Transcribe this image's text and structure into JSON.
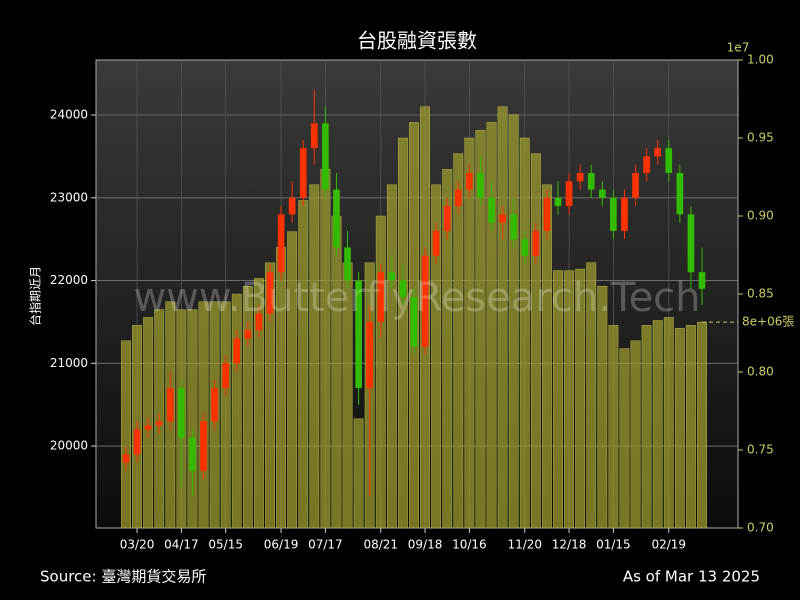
{
  "chart_data": {
    "type": "candlestick",
    "title": "台股融資張數",
    "ylabel": "台指期近月",
    "source": "Source: 臺灣期貨交易所",
    "as_of": "As of Mar 13 2025",
    "watermark": "www.ButterflyResearch.Tech",
    "y2_offset_label": "1e7",
    "last_value_label": "8e+06張",
    "categories": [
      null,
      "03/20",
      null,
      null,
      null,
      "04/17",
      null,
      null,
      null,
      "05/15",
      null,
      null,
      null,
      null,
      "06/19",
      null,
      null,
      null,
      "07/17",
      null,
      null,
      null,
      null,
      "08/21",
      null,
      null,
      null,
      "09/18",
      null,
      null,
      null,
      "10/16",
      null,
      null,
      null,
      null,
      "11/20",
      null,
      null,
      null,
      "12/18",
      null,
      null,
      null,
      "01/15",
      null,
      null,
      null,
      null,
      "02/19",
      null,
      null,
      null
    ],
    "ohlc": {
      "up_color": "#ff3300",
      "down_color": "#33bb00",
      "open": [
        19800,
        19900,
        20200,
        20250,
        20300,
        20700,
        20100,
        19700,
        20300,
        20700,
        21000,
        21300,
        21400,
        21600,
        22100,
        22800,
        23000,
        23600,
        23900,
        23100,
        22400,
        22000,
        20700,
        21500,
        22100,
        22000,
        21800,
        21200,
        22300,
        22600,
        22900,
        23100,
        23300,
        23000,
        22700,
        22800,
        22500,
        22300,
        22600,
        23000,
        22900,
        23200,
        23300,
        23100,
        23000,
        22600,
        23000,
        23300,
        23500,
        23600,
        23300,
        22800,
        22100
      ],
      "high": [
        20000,
        20300,
        20350,
        20400,
        20900,
        20800,
        20200,
        20400,
        20800,
        21100,
        21400,
        21500,
        21700,
        22200,
        22900,
        23200,
        23700,
        24300,
        24100,
        23300,
        22600,
        22100,
        21700,
        22200,
        22300,
        22200,
        21900,
        22400,
        22700,
        23000,
        23200,
        23400,
        23500,
        23200,
        22900,
        23000,
        22600,
        22700,
        23100,
        23200,
        23300,
        23400,
        23400,
        23200,
        23100,
        23100,
        23400,
        23600,
        23700,
        23700,
        23400,
        22900,
        22400
      ],
      "low": [
        19700,
        19800,
        20100,
        20150,
        20200,
        19500,
        19400,
        19600,
        20200,
        20600,
        20900,
        21200,
        21300,
        21500,
        22000,
        22700,
        22900,
        23400,
        23000,
        22300,
        21900,
        20500,
        19400,
        21300,
        21900,
        21700,
        21100,
        21100,
        22200,
        22500,
        22800,
        23000,
        22900,
        22600,
        22500,
        22400,
        22200,
        22200,
        22500,
        22800,
        22800,
        23100,
        23000,
        22900,
        22500,
        22500,
        22900,
        23200,
        23400,
        23200,
        22700,
        21900,
        21700
      ],
      "close": [
        19900,
        20200,
        20250,
        20300,
        20700,
        20100,
        19700,
        20300,
        20700,
        21000,
        21300,
        21400,
        21600,
        22100,
        22800,
        23000,
        23600,
        23900,
        23100,
        22400,
        22000,
        20700,
        21500,
        22100,
        22000,
        21800,
        21200,
        22300,
        22600,
        22900,
        23100,
        23300,
        23000,
        22700,
        22800,
        22500,
        22300,
        22600,
        23000,
        22900,
        23200,
        23300,
        23100,
        23000,
        22600,
        23000,
        23300,
        23500,
        23600,
        23300,
        22800,
        22100,
        21900
      ]
    },
    "bars": {
      "axis": "y2",
      "color": "#9b9b2e",
      "values": [
        8200000,
        8300000,
        8350000,
        8400000,
        8450000,
        8400000,
        8400000,
        8450000,
        8450000,
        8450000,
        8500000,
        8550000,
        8600000,
        8700000,
        8800000,
        8900000,
        9100000,
        9200000,
        9300000,
        9000000,
        8700000,
        7700000,
        8700000,
        9000000,
        9200000,
        9500000,
        9600000,
        9700000,
        9200000,
        9300000,
        9400000,
        9500000,
        9550000,
        9600000,
        9700000,
        9650000,
        9500000,
        9400000,
        9200000,
        8650000,
        8650000,
        8660000,
        8700000,
        8550000,
        8300000,
        8150000,
        8200000,
        8300000,
        8330000,
        8350000,
        8280000,
        8300000,
        8320000
      ]
    },
    "ylim": [
      19010,
      24665
    ],
    "yticks": [
      20000,
      21000,
      22000,
      23000,
      24000
    ],
    "y2lim": [
      7000000,
      10000000
    ],
    "y2ticks": [
      {
        "value": 7000000,
        "label": "0.70"
      },
      {
        "value": 7500000,
        "label": "0.75"
      },
      {
        "value": 8000000,
        "label": "0.80"
      },
      {
        "value": 8500000,
        "label": "0.85"
      },
      {
        "value": 9000000,
        "label": "0.90"
      },
      {
        "value": 9500000,
        "label": "0.95"
      },
      {
        "value": 10000000,
        "label": "1.00"
      }
    ],
    "grid": true
  }
}
